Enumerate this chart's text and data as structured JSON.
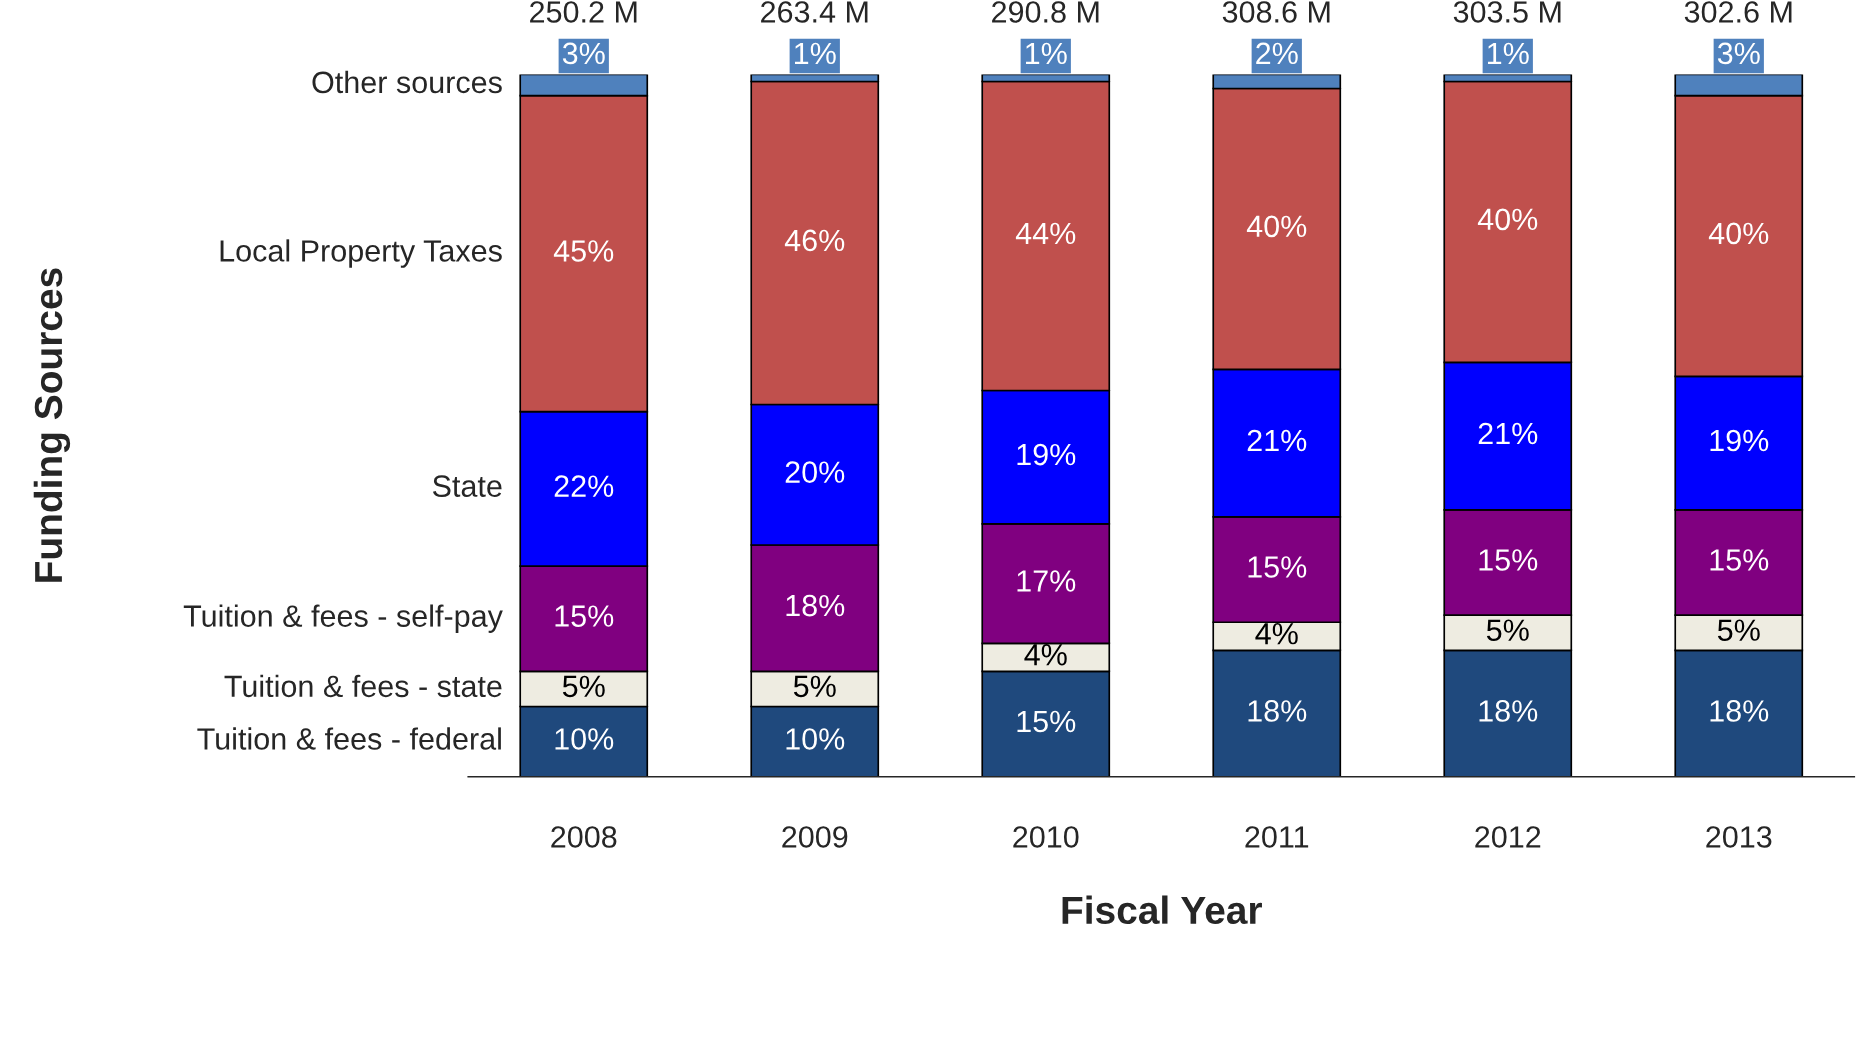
{
  "chart_data": {
    "type": "bar",
    "stacked": true,
    "xlabel": "Fiscal Year",
    "categories": [
      "2008",
      "2009",
      "2010",
      "2011",
      "2012",
      "2013"
    ],
    "series": [
      {
        "name": "Tuition & fees - federal",
        "color": "#1f497d",
        "values": [
          10,
          10,
          15,
          18,
          18,
          18
        ],
        "value_labels": [
          "10%",
          "10%",
          "15%",
          "18%",
          "18%",
          "18%"
        ]
      },
      {
        "name": "Tuition & fees - state",
        "color": "#eeece1",
        "values": [
          5,
          5,
          4,
          4,
          5,
          5
        ],
        "value_labels": [
          "5%",
          "5%",
          "4%",
          "4%",
          "5%",
          "5%"
        ]
      },
      {
        "name": "Tuition & fees - self-pay",
        "color": "#800080",
        "values": [
          15,
          18,
          17,
          15,
          15,
          15
        ],
        "value_labels": [
          "15%",
          "18%",
          "17%",
          "15%",
          "15%",
          "15%"
        ]
      },
      {
        "name": "State",
        "color": "#0000ff",
        "values": [
          22,
          20,
          19,
          21,
          21,
          19
        ],
        "value_labels": [
          "22%",
          "20%",
          "19%",
          "21%",
          "21%",
          "19%"
        ]
      },
      {
        "name": "Local Property Taxes",
        "color": "#c0504d",
        "values": [
          45,
          46,
          44,
          40,
          40,
          40
        ],
        "value_labels": [
          "45%",
          "46%",
          "44%",
          "40%",
          "40%",
          "40%"
        ]
      },
      {
        "name": "Other sources",
        "color": "#4f81bd",
        "values": [
          3,
          1,
          1,
          2,
          1,
          3
        ],
        "value_labels": [
          "3%",
          "1%",
          "1%",
          "2%",
          "1%",
          "3%"
        ]
      }
    ],
    "annotations": [
      "Funding Sources",
      {
        "text": "250.2 M",
        "x": "2008",
        "y": 100
      },
      {
        "text": "263.4 M",
        "x": "2009",
        "y": 100
      },
      {
        "text": "290.8 M",
        "x": "2010",
        "y": 100
      },
      {
        "text": "308.6 M",
        "x": "2011",
        "y": 100
      },
      {
        "text": "303.5 M",
        "x": "2012",
        "y": 100
      },
      {
        "text": "302.6 M",
        "x": "2013",
        "y": 100
      }
    ],
    "tick_labels": "x",
    "legend": "left"
  }
}
